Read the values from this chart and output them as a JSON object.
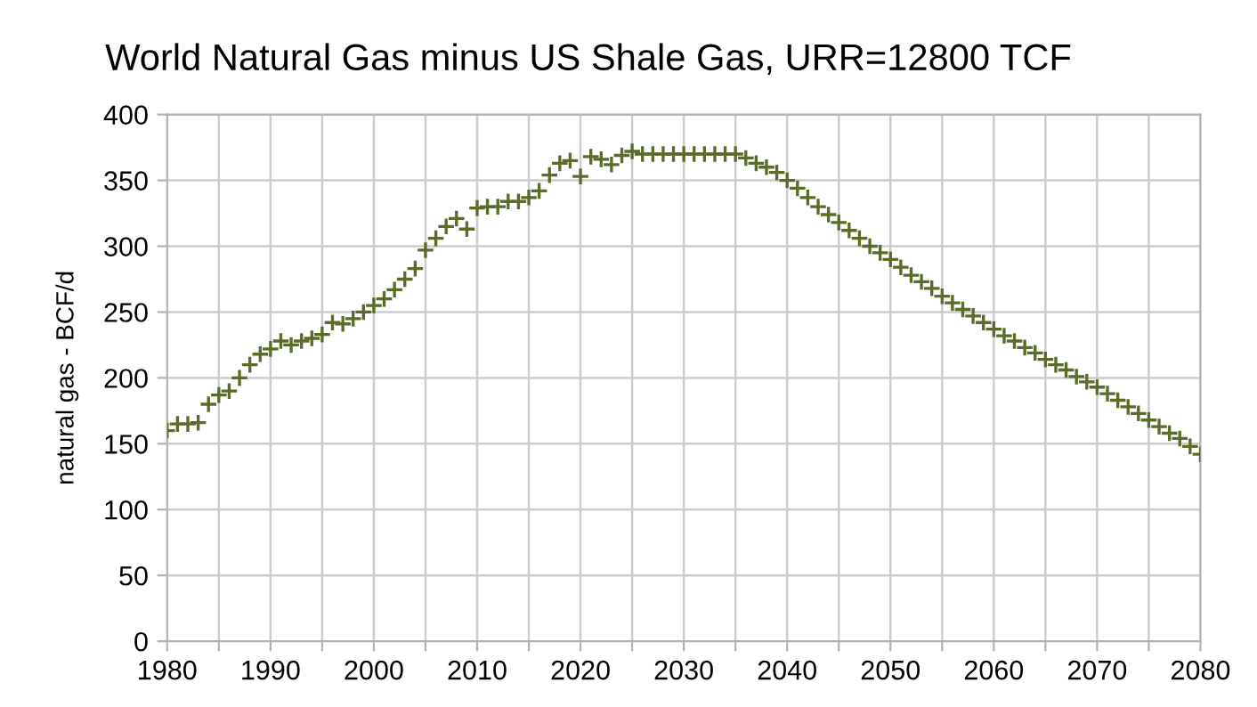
{
  "chart_data": {
    "type": "scatter",
    "title": "World Natural Gas minus US Shale Gas, URR=12800 TCF",
    "ylabel": "natural gas - BCF/d",
    "x": [
      1980,
      1981,
      1982,
      1983,
      1984,
      1985,
      1986,
      1987,
      1988,
      1989,
      1990,
      1991,
      1992,
      1993,
      1994,
      1995,
      1996,
      1997,
      1998,
      1999,
      2000,
      2001,
      2002,
      2003,
      2004,
      2005,
      2006,
      2007,
      2008,
      2009,
      2010,
      2011,
      2012,
      2013,
      2014,
      2015,
      2016,
      2017,
      2018,
      2019,
      2020,
      2021,
      2022,
      2023,
      2024,
      2025,
      2026,
      2027,
      2028,
      2029,
      2030,
      2031,
      2032,
      2033,
      2034,
      2035,
      2036,
      2037,
      2038,
      2039,
      2040,
      2041,
      2042,
      2043,
      2044,
      2045,
      2046,
      2047,
      2048,
      2049,
      2050,
      2051,
      2052,
      2053,
      2054,
      2055,
      2056,
      2057,
      2058,
      2059,
      2060,
      2061,
      2062,
      2063,
      2064,
      2065,
      2066,
      2067,
      2068,
      2069,
      2070,
      2071,
      2072,
      2073,
      2074,
      2075,
      2076,
      2077,
      2078,
      2079,
      2080
    ],
    "series": [
      {
        "color": "#5a6b2a",
        "values": [
          160,
          165,
          165,
          166,
          180,
          187,
          190,
          200,
          210,
          218,
          222,
          228,
          225,
          228,
          230,
          233,
          242,
          241,
          245,
          250,
          255,
          260,
          267,
          275,
          283,
          297,
          306,
          315,
          321,
          313,
          329,
          330,
          330,
          334,
          334,
          337,
          342,
          354,
          363,
          365,
          353,
          368,
          366,
          362,
          369,
          372,
          370,
          370,
          370,
          370,
          370,
          370,
          370,
          370,
          370,
          370,
          367,
          363,
          360,
          356,
          350,
          344,
          337,
          330,
          324,
          318,
          312,
          306,
          300,
          295,
          290,
          284,
          278,
          273,
          268,
          262,
          257,
          252,
          247,
          242,
          237,
          232,
          228,
          223,
          219,
          214,
          210,
          206,
          201,
          197,
          193,
          188,
          183,
          178,
          173,
          168,
          163,
          158,
          154,
          148,
          142
        ]
      }
    ],
    "marker": "cross",
    "grid": true,
    "xlim": [
      1980,
      2080
    ],
    "xticks": [
      1980,
      {
        "value": 1985,
        "label": null
      },
      1990,
      {
        "value": 1995,
        "label": null
      },
      2000,
      {
        "value": 2005,
        "label": null
      },
      2010,
      {
        "value": 2015,
        "label": null
      },
      2020,
      {
        "value": 2025,
        "label": null
      },
      2030,
      {
        "value": 2035,
        "label": null
      },
      2040,
      {
        "value": 2045,
        "label": null
      },
      2050,
      {
        "value": 2055,
        "label": null
      },
      2060,
      {
        "value": 2065,
        "label": null
      },
      2070,
      {
        "value": 2075,
        "label": null
      },
      2080
    ],
    "ylim": [
      0,
      400
    ],
    "yticks": [
      0,
      50,
      100,
      150,
      200,
      250,
      300,
      350,
      400
    ]
  }
}
